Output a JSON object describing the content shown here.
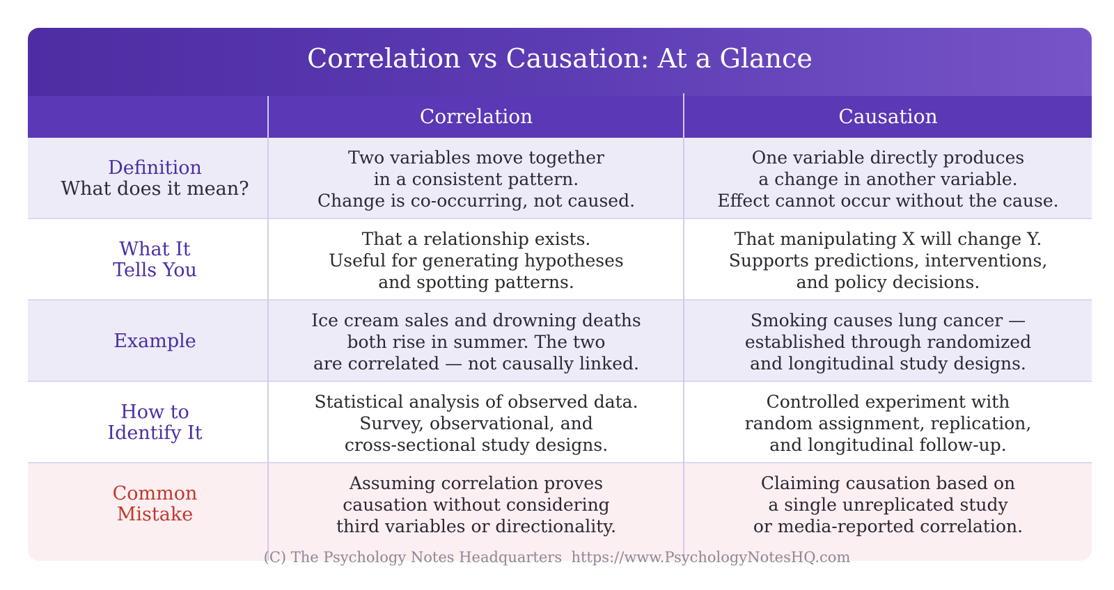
{
  "title": "Correlation vs Causation: At a Glance",
  "columns": {
    "correlation": "Correlation",
    "causation": "Causation"
  },
  "rows": [
    {
      "label": [
        "Definition"
      ],
      "sublabel": "What does it mean?",
      "correlation": [
        "Two variables move together",
        "in a consistent pattern.",
        "Change is co-occurring, not caused."
      ],
      "causation": [
        "One variable directly produces",
        "a change in another variable.",
        "Effect cannot occur without the cause."
      ]
    },
    {
      "label": [
        "What It",
        "Tells You"
      ],
      "correlation": [
        "That a relationship exists.",
        "Useful for generating hypotheses",
        "and spotting patterns."
      ],
      "causation": [
        "That manipulating X will change Y.",
        "Supports predictions, interventions,",
        "and policy decisions."
      ]
    },
    {
      "label": [
        "Example"
      ],
      "correlation": [
        "Ice cream sales and drowning deaths",
        "both rise in summer. The two",
        "are correlated — not causally linked."
      ],
      "causation": [
        "Smoking causes lung cancer —",
        "established through randomized",
        "and longitudinal study designs."
      ]
    },
    {
      "label": [
        "How to",
        "Identify It"
      ],
      "correlation": [
        "Statistical analysis of observed data.",
        "Survey, observational, and",
        "cross-sectional study designs."
      ],
      "causation": [
        "Controlled experiment with",
        "random assignment, replication,",
        "and longitudinal follow-up."
      ]
    },
    {
      "label": [
        "Common",
        "Mistake"
      ],
      "correlation": [
        "Assuming correlation proves",
        "causation without considering",
        "third variables or directionality."
      ],
      "causation": [
        "Claiming causation based on",
        "a single unreplicated study",
        "or media-reported correlation."
      ]
    }
  ],
  "footer": "(C) The Psychology Notes Headquarters  https://www.PsychologyNotesHQ.com",
  "colors": {
    "title_bg": "#5233a8",
    "header_bg": "#5a38b6",
    "label_purple": "#4b2fa3",
    "mistake_red": "#c0392b",
    "row_alt": "#eeebf9",
    "row_mistake": "#fbeff2"
  }
}
